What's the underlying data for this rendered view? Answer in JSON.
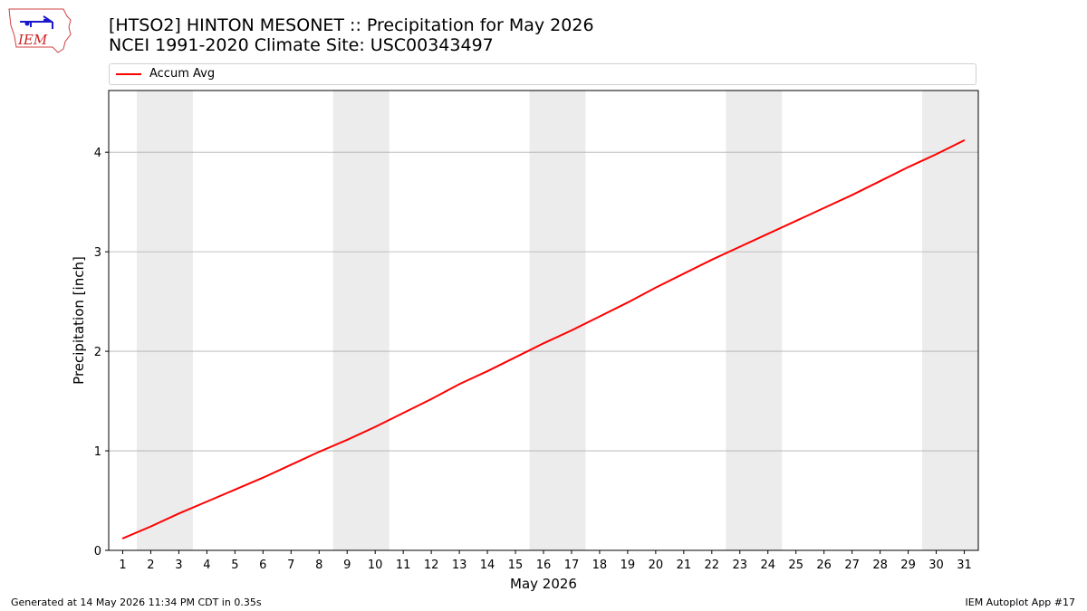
{
  "header": {
    "title_line1": "[HTSO2] HINTON MESONET :: Precipitation for May 2026",
    "title_line2": "NCEI 1991-2020 Climate Site: USC00343497",
    "logo_text": "IEM"
  },
  "footer": {
    "generated": "Generated at 14 May 2026 11:34 PM CDT in 0.35s",
    "app": "IEM Autoplot App #17"
  },
  "colors": {
    "line": "#ff0000",
    "weekend_band": "#ececec",
    "grid": "#b0b0b0"
  },
  "chart_data": {
    "type": "line",
    "xlabel": "May 2026",
    "ylabel": "Precipitation [inch]",
    "x": [
      1,
      2,
      3,
      4,
      5,
      6,
      7,
      8,
      9,
      10,
      11,
      12,
      13,
      14,
      15,
      16,
      17,
      18,
      19,
      20,
      21,
      22,
      23,
      24,
      25,
      26,
      27,
      28,
      29,
      30,
      31
    ],
    "xlim": [
      0.5,
      31.5
    ],
    "ylim": [
      0,
      4.62
    ],
    "yticks": [
      0,
      1,
      2,
      3,
      4
    ],
    "grid": "y",
    "legend_placement": "top",
    "weekend_bands": [
      [
        1.5,
        3.5
      ],
      [
        8.5,
        10.5
      ],
      [
        15.5,
        17.5
      ],
      [
        22.5,
        24.5
      ],
      [
        29.5,
        31.5
      ]
    ],
    "series": [
      {
        "name": "Accum Avg",
        "values": [
          0.12,
          0.24,
          0.37,
          0.49,
          0.61,
          0.73,
          0.86,
          0.99,
          1.11,
          1.24,
          1.38,
          1.52,
          1.67,
          1.8,
          1.94,
          2.08,
          2.21,
          2.35,
          2.49,
          2.64,
          2.78,
          2.92,
          3.05,
          3.18,
          3.31,
          3.44,
          3.57,
          3.71,
          3.85,
          3.98,
          4.12
        ]
      }
    ]
  }
}
